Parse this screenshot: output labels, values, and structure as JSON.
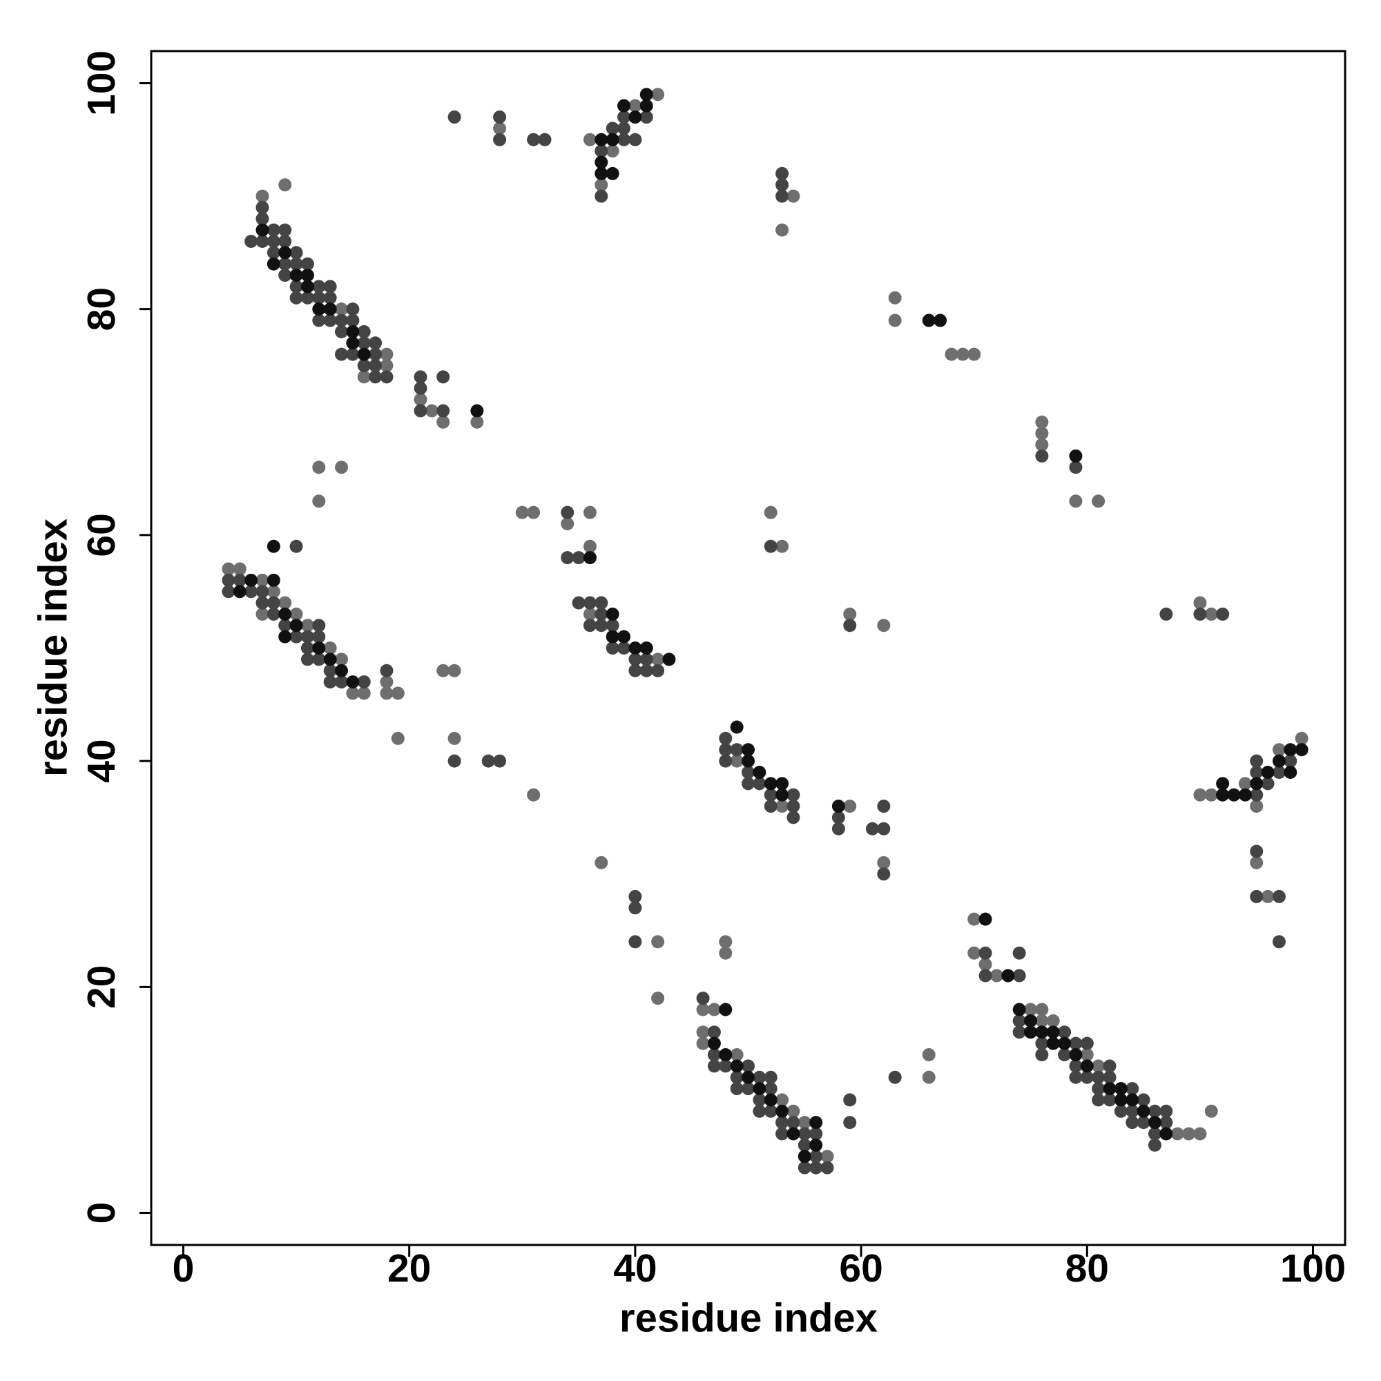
{
  "chart_data": {
    "type": "scatter",
    "xlabel": "residue index",
    "ylabel": "residue index",
    "xlim": [
      -2.84,
      102.84
    ],
    "ylim": [
      -2.84,
      102.84
    ],
    "xticks": [
      0,
      20,
      40,
      60,
      80,
      100
    ],
    "yticks": [
      0,
      20,
      40,
      60,
      80,
      100
    ],
    "grid": false,
    "series": [
      {
        "color": "#6e6e6e",
        "x": [
          7,
          9,
          14,
          16,
          18,
          18,
          21,
          22,
          23,
          26,
          28,
          36,
          37,
          38,
          40,
          42,
          54,
          53,
          63,
          63,
          68,
          69,
          70,
          76,
          76,
          76,
          79,
          81,
          12,
          14,
          12,
          4,
          5,
          7,
          8,
          9,
          7,
          10,
          11,
          13,
          14,
          15,
          16,
          18,
          18,
          19,
          19,
          23,
          24,
          24,
          31,
          30,
          31,
          34,
          36,
          36,
          36,
          42,
          52,
          53,
          59,
          62,
          90,
          91,
          49,
          53,
          59,
          62,
          37,
          42,
          42,
          48,
          48,
          46,
          47,
          46,
          46,
          49,
          53,
          54,
          55,
          57,
          66,
          66,
          70,
          70,
          71,
          72,
          75,
          76,
          76,
          77,
          80,
          81,
          88,
          89,
          90,
          91,
          90,
          91,
          94,
          95,
          97,
          99,
          95,
          96
        ],
        "values": [
          90,
          91,
          80,
          74,
          76,
          75,
          72,
          71,
          70,
          70,
          96,
          95,
          91,
          94,
          98,
          99,
          90,
          87,
          81,
          79,
          76,
          76,
          76,
          70,
          69,
          68,
          63,
          63,
          66,
          66,
          63,
          57,
          57,
          56,
          55,
          54,
          53,
          53,
          52,
          50,
          49,
          46,
          46,
          47,
          46,
          46,
          42,
          48,
          48,
          42,
          37,
          62,
          62,
          61,
          62,
          59,
          53,
          49,
          62,
          59,
          53,
          52,
          54,
          53,
          40,
          36,
          36,
          31,
          31,
          24,
          19,
          24,
          23,
          18,
          18,
          16,
          15,
          14,
          10,
          9,
          8,
          5,
          14,
          12,
          26,
          23,
          22,
          21,
          18,
          18,
          17,
          17,
          14,
          13,
          7,
          7,
          7,
          9,
          37,
          37,
          38,
          36,
          41,
          42,
          31,
          28
        ]
      },
      {
        "color": "#444444",
        "x": [
          6,
          7,
          7,
          7,
          8,
          8,
          8,
          9,
          9,
          9,
          9,
          10,
          10,
          10,
          10,
          11,
          11,
          12,
          12,
          12,
          13,
          13,
          13,
          14,
          14,
          14,
          15,
          15,
          15,
          16,
          16,
          16,
          17,
          17,
          17,
          17,
          18,
          21,
          21,
          21,
          23,
          23,
          24,
          28,
          28,
          31,
          32,
          37,
          37,
          38,
          39,
          39,
          39,
          40,
          41,
          53,
          53,
          53,
          76,
          79,
          10,
          4,
          5,
          4,
          6,
          7,
          7,
          8,
          8,
          9,
          12,
          10,
          11,
          12,
          11,
          11,
          12,
          13,
          13,
          14,
          16,
          18,
          24,
          27,
          28,
          34,
          34,
          35,
          35,
          36,
          37,
          37,
          36,
          37,
          38,
          38,
          39,
          40,
          41,
          40,
          41,
          42,
          52,
          59,
          87,
          90,
          92,
          48,
          48,
          49,
          48,
          50,
          50,
          51,
          52,
          54,
          52,
          54,
          54,
          58,
          58,
          61,
          62,
          62,
          62,
          40,
          40,
          40,
          46,
          47,
          47,
          47,
          48,
          50,
          49,
          51,
          52,
          49,
          50,
          52,
          51,
          51,
          52,
          53,
          54,
          53,
          55,
          56,
          55,
          56,
          55,
          56,
          57,
          59,
          59,
          63,
          71,
          71,
          74,
          74,
          74,
          74,
          78,
          76,
          79,
          80,
          76,
          78,
          79,
          82,
          79,
          80,
          81,
          82,
          81,
          84,
          81,
          82,
          85,
          83,
          84,
          86,
          87,
          84,
          85,
          87,
          86,
          86,
          95,
          95,
          95,
          96,
          97,
          98,
          95,
          95,
          97,
          97
        ],
        "values": [
          86,
          86,
          88,
          89,
          87,
          86,
          85,
          87,
          86,
          84,
          83,
          85,
          84,
          82,
          81,
          84,
          81,
          82,
          81,
          79,
          82,
          81,
          79,
          79,
          78,
          76,
          80,
          79,
          76,
          78,
          77,
          75,
          77,
          76,
          75,
          74,
          74,
          74,
          73,
          71,
          74,
          71,
          97,
          97,
          95,
          95,
          95,
          94,
          90,
          96,
          96,
          97,
          95,
          95,
          97,
          92,
          91,
          90,
          67,
          66,
          59,
          56,
          56,
          55,
          55,
          55,
          54,
          54,
          53,
          52,
          52,
          51,
          51,
          51,
          50,
          49,
          49,
          48,
          47,
          47,
          47,
          48,
          40,
          40,
          40,
          62,
          58,
          58,
          54,
          54,
          54,
          53,
          52,
          52,
          52,
          50,
          50,
          49,
          49,
          48,
          48,
          48,
          59,
          52,
          53,
          53,
          53,
          42,
          41,
          41,
          40,
          39,
          38,
          38,
          37,
          37,
          36,
          36,
          35,
          35,
          34,
          34,
          34,
          36,
          30,
          28,
          27,
          24,
          19,
          16,
          14,
          13,
          13,
          13,
          12,
          12,
          12,
          11,
          11,
          11,
          10,
          9,
          9,
          8,
          8,
          7,
          7,
          7,
          6,
          5,
          4,
          4,
          4,
          10,
          8,
          12,
          23,
          21,
          21,
          23,
          17,
          16,
          16,
          15,
          15,
          15,
          14,
          14,
          13,
          13,
          12,
          12,
          12,
          12,
          11,
          11,
          10,
          10,
          10,
          9,
          9,
          9,
          9,
          8,
          8,
          8,
          7,
          6,
          37,
          39,
          40,
          38,
          39,
          40,
          32,
          28,
          28,
          24
        ]
      },
      {
        "color": "#111111",
        "x": [
          7,
          8,
          9,
          10,
          11,
          11,
          12,
          13,
          15,
          15,
          16,
          26,
          37,
          37,
          37,
          38,
          38,
          39,
          40,
          41,
          41,
          66,
          67,
          79,
          8,
          6,
          8,
          5,
          9,
          10,
          9,
          12,
          13,
          14,
          15,
          36,
          38,
          38,
          39,
          40,
          41,
          43,
          49,
          50,
          50,
          51,
          52,
          53,
          53,
          58,
          48,
          47,
          48,
          49,
          50,
          51,
          52,
          53,
          56,
          54,
          56,
          55,
          71,
          73,
          74,
          75,
          75,
          76,
          77,
          77,
          78,
          79,
          80,
          82,
          83,
          83,
          84,
          85,
          86,
          87,
          92,
          92,
          93,
          94,
          95,
          96,
          97,
          98,
          98,
          99
        ],
        "values": [
          87,
          84,
          85,
          83,
          83,
          82,
          80,
          80,
          78,
          77,
          76,
          71,
          95,
          93,
          92,
          95,
          92,
          98,
          97,
          99,
          98,
          79,
          79,
          67,
          59,
          56,
          56,
          55,
          53,
          52,
          51,
          50,
          49,
          48,
          47,
          58,
          53,
          51,
          51,
          50,
          50,
          49,
          43,
          41,
          40,
          39,
          38,
          38,
          37,
          36,
          18,
          15,
          14,
          13,
          12,
          11,
          10,
          9,
          8,
          7,
          6,
          5,
          26,
          21,
          18,
          17,
          16,
          16,
          16,
          15,
          15,
          14,
          13,
          11,
          11,
          10,
          10,
          9,
          8,
          7,
          38,
          37,
          37,
          37,
          38,
          39,
          40,
          41,
          39,
          41
        ]
      }
    ]
  }
}
